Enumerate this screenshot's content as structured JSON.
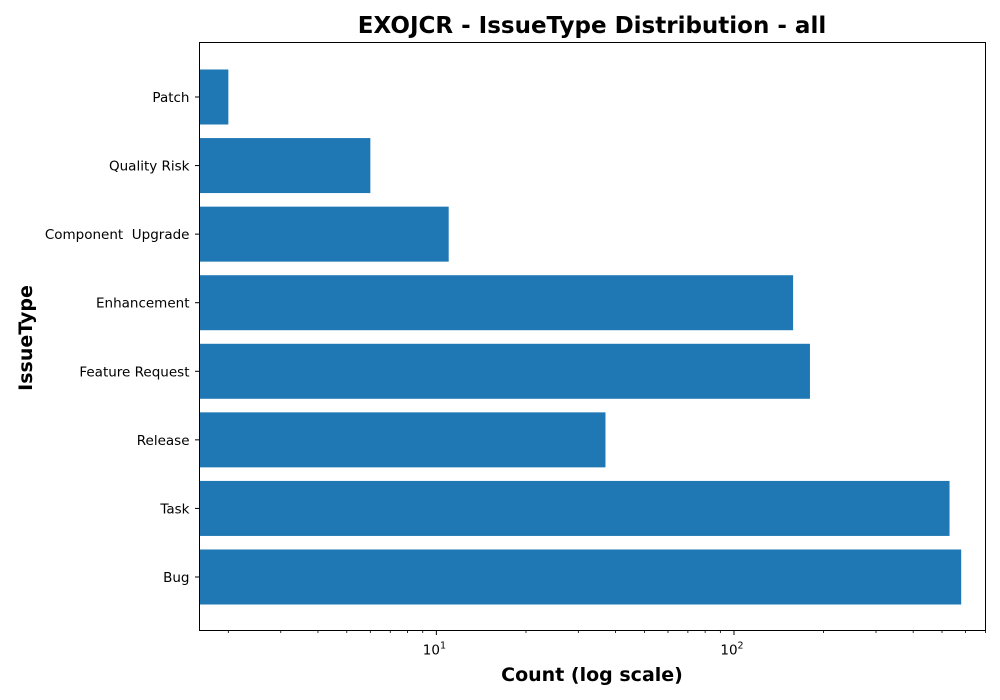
{
  "chart_data": {
    "type": "bar",
    "orientation": "horizontal",
    "title": "EXOJCR - IssueType Distribution - all",
    "xlabel": "Count (log scale)",
    "ylabel": "IssueType",
    "x_scale": "log",
    "xlim": [
      1.6,
      700
    ],
    "x_ticks": [
      {
        "value": 10,
        "base": "10",
        "exp": "1"
      },
      {
        "value": 100,
        "base": "10",
        "exp": "2"
      }
    ],
    "categories": [
      "Bug",
      "Task",
      "Release",
      "Feature Request",
      "Enhancement",
      "Component  Upgrade",
      "Quality Risk",
      "Patch"
    ],
    "values": [
      580,
      530,
      37,
      180,
      158,
      11,
      6,
      2
    ],
    "bar_color": "#1f77b4",
    "grid": false
  }
}
